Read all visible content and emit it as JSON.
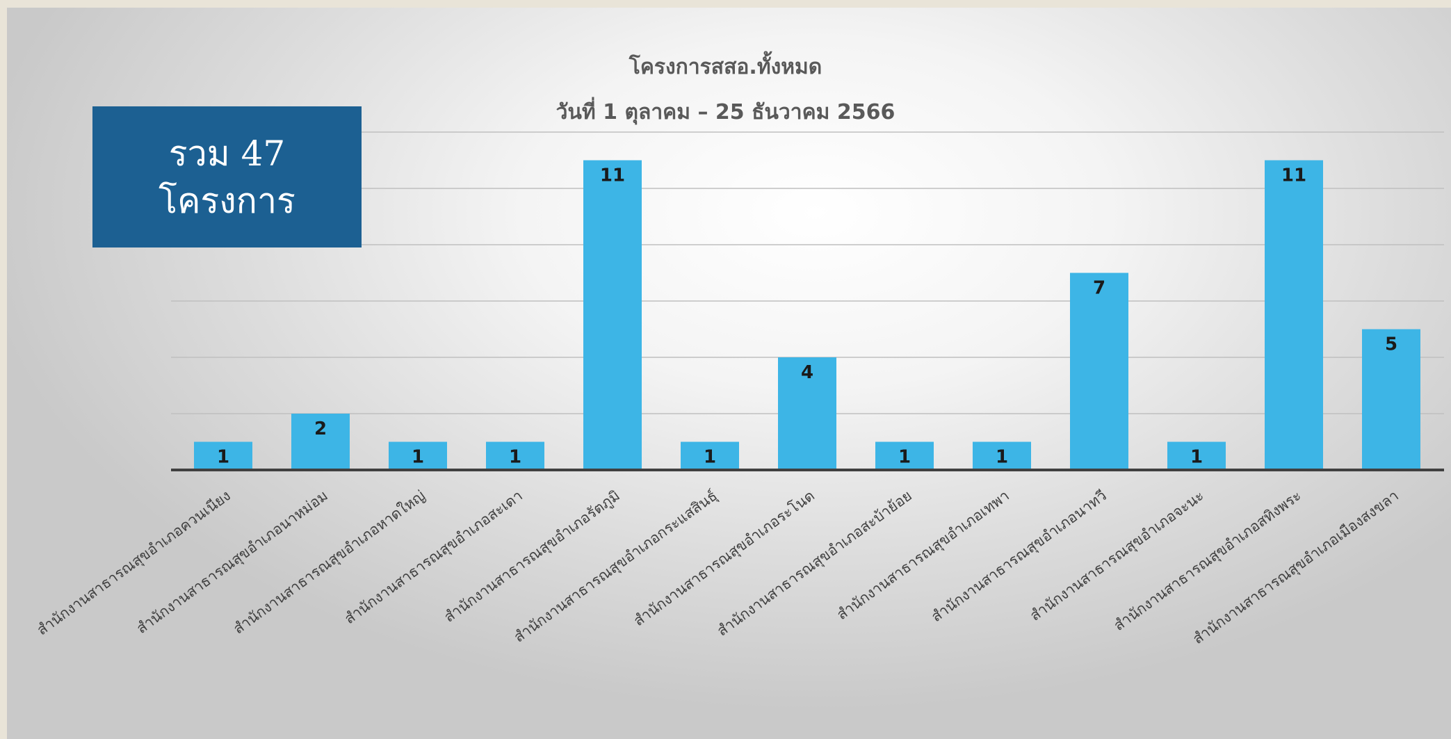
{
  "title": "โครงการสสอ.ทั้งหมด",
  "subtitle": "วันที่ 1 ตุลาคม – 25 ธันวาคม 2566",
  "total_box": {
    "line1": "รวม 47",
    "line2": "โครงการ"
  },
  "colors": {
    "bar": "#3db5e6",
    "axis": "#404040",
    "grid": "#bfbfbf",
    "total_box": "#1c6092",
    "label_text": "#404040"
  },
  "chart_data": {
    "type": "bar",
    "title": "โครงการสสอ.ทั้งหมด",
    "subtitle": "วันที่ 1 ตุลาคม – 25 ธันวาคม 2566",
    "categories": [
      "สำนักงานสาธารณสุขอำเภอควนเนียง",
      "สำนักงานสาธารณสุขอำเภอนาหม่อม",
      "สำนักงานสาธารณสุขอำเภอหาดใหญ่",
      "สำนักงานสาธารณสุขอำเภอสะเดา",
      "สำนักงานสาธารณสุขอำเภอรัตภูมิ",
      "สำนักงานสาธารณสุขอำเภอกระแสสินธุ์",
      "สำนักงานสาธารณสุขอำเภอระโนด",
      "สำนักงานสาธารณสุขอำเภอสะบ้าย้อย",
      "สำนักงานสาธารณสุขอำเภอเทพา",
      "สำนักงานสาธารณสุขอำเภอนาทวี",
      "สำนักงานสาธารณสุขอำเภอจะนะ",
      "สำนักงานสาธารณสุขอำเภอสทิงพระ",
      "สำนักงานสาธารณสุขอำเภอเมืองสงขลา"
    ],
    "values": [
      1,
      2,
      1,
      1,
      11,
      1,
      4,
      1,
      1,
      7,
      1,
      11,
      5
    ],
    "ylim": [
      0,
      12
    ],
    "grid": true,
    "data_labels": true,
    "legend": "none"
  }
}
